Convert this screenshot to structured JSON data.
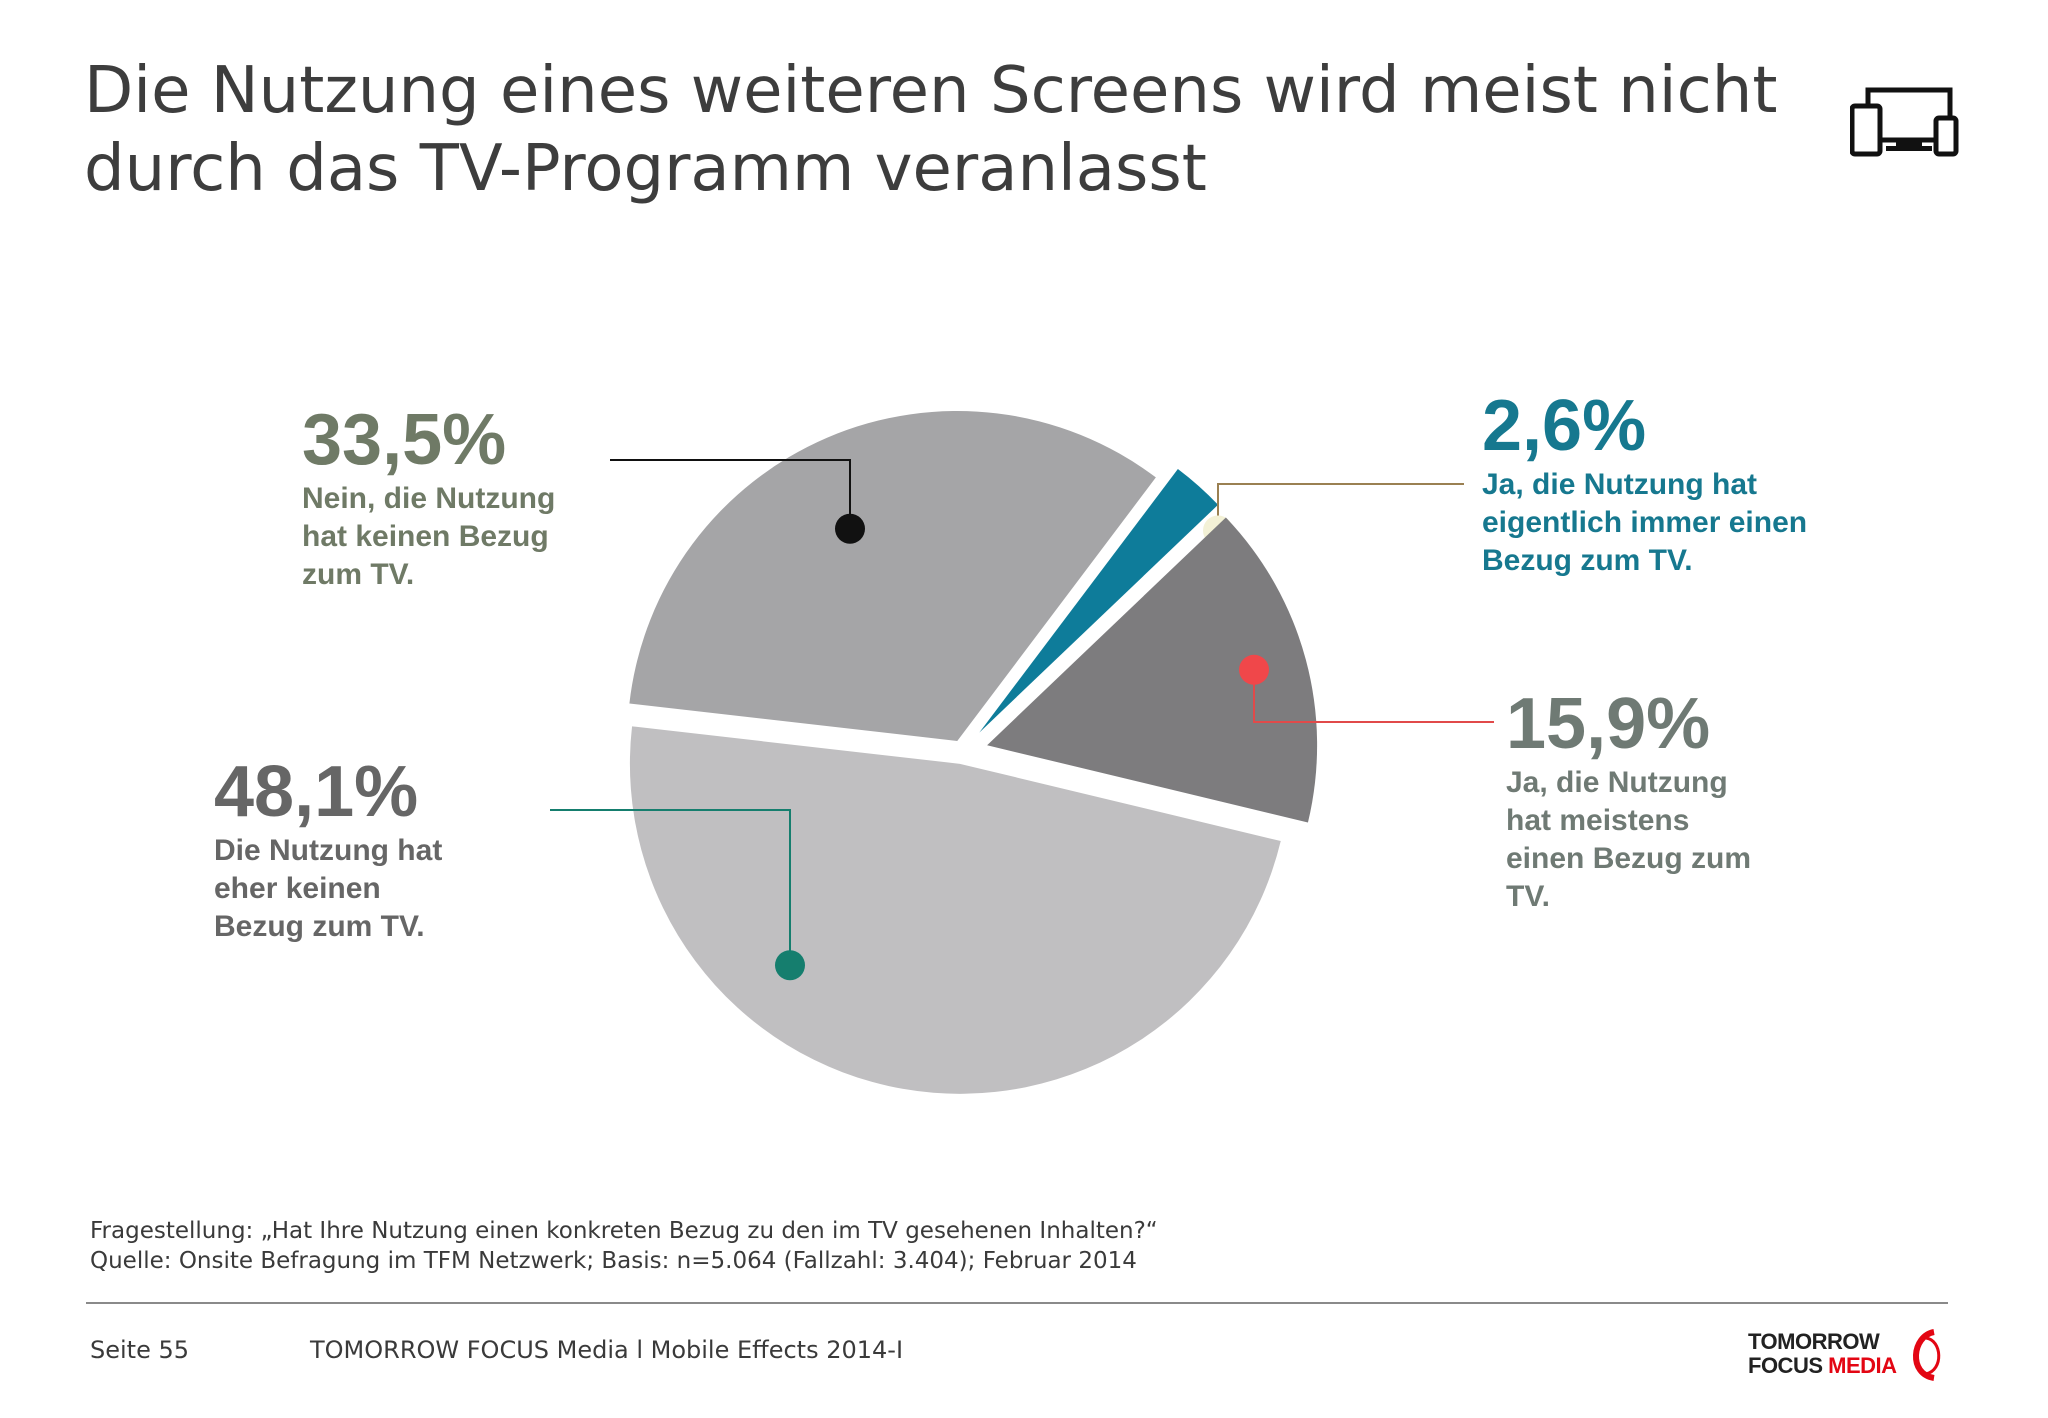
{
  "title": "Die Nutzung eines weiteren Screens wird meist nicht\ndurch das TV-Programm veranlasst",
  "header_icon": "devices-icon",
  "chart_data": {
    "type": "pie",
    "title": "",
    "slices": [
      {
        "value": 2.6,
        "label": "2,6%",
        "description": "Ja, die Nutzung hat\neigentlich immer einen\nBezug zum TV.",
        "color": "#0e7c9a",
        "label_color": "#16788f",
        "marker_color": "#f3f1d6",
        "leader_color": "#9a8052"
      },
      {
        "value": 15.9,
        "label": "15,9%",
        "description": "Ja, die Nutzung\nhat meistens\neinen Bezug zum\nTV.",
        "color": "#7d7c7e",
        "label_color": "#6f7a74",
        "marker_color": "#f0474a",
        "leader_color": "#e14a4a"
      },
      {
        "value": 48.1,
        "label": "48,1%",
        "description": "Die Nutzung hat\neher keinen\nBezug zum TV.",
        "color": "#c0bfc1",
        "label_color": "#666666",
        "marker_color": "#157e6e",
        "leader_color": "#157e6e"
      },
      {
        "value": 33.5,
        "label": "33,5%",
        "description": "Nein, die Nutzung\nhat keinen Bezug\nzum TV.",
        "color": "#a5a5a7",
        "label_color": "#6f7a66",
        "marker_color": "#111111",
        "leader_color": "#111111"
      }
    ]
  },
  "footer": {
    "question": "Fragestellung: „Hat Ihre Nutzung einen konkreten Bezug zu den im TV gesehenen Inhalten?“",
    "source": "Quelle: Onsite Befragung im TFM Netzwerk; Basis: n=5.064 (Fallzahl: 3.404); Februar 2014",
    "page": "Seite 55",
    "center": "TOMORROW FOCUS Media  l  Mobile Effects 2014-I"
  },
  "logo": {
    "line1": "TOMORROW",
    "line2_a": "FOCUS ",
    "line2_b": "MEDIA",
    "accent_color": "#e30613"
  }
}
